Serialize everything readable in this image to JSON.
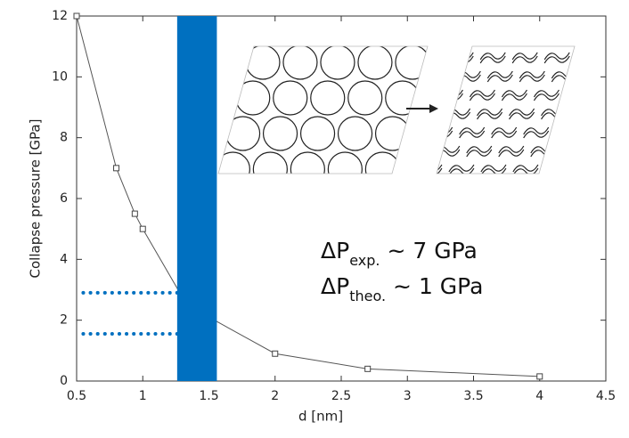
{
  "chart_data": {
    "type": "line",
    "x_label": "d [nm]",
    "y_label": "Collapse pressure [GPa]",
    "xlim": [
      0.5,
      4.5
    ],
    "ylim": [
      0,
      12
    ],
    "xticks": [
      0.5,
      1,
      1.5,
      2,
      2.5,
      3,
      3.5,
      4,
      4.5
    ],
    "yticks": [
      0,
      2,
      4,
      6,
      8,
      10,
      12
    ],
    "x": [
      0.5,
      0.8,
      0.94,
      1.0,
      1.3,
      1.5,
      2.0,
      2.7,
      4.0
    ],
    "values": [
      12,
      7,
      5.5,
      5.0,
      2.75,
      2.1,
      0.9,
      0.4,
      0.15
    ],
    "color": "#555555",
    "band": {
      "x": [
        1.26,
        1.56
      ],
      "color": "#0070c0"
    },
    "reference_lines": [
      {
        "y": 2.9,
        "x": [
          0.55,
          1.26
        ]
      },
      {
        "y": 1.55,
        "x": [
          0.55,
          1.26
        ]
      }
    ],
    "annotations": [
      {
        "symbol": "ΔP",
        "sub": "exp.",
        "text": "~ 7 GPa"
      },
      {
        "symbol": "ΔP",
        "sub": "theo.",
        "text": "~ 1 GPa"
      }
    ]
  }
}
